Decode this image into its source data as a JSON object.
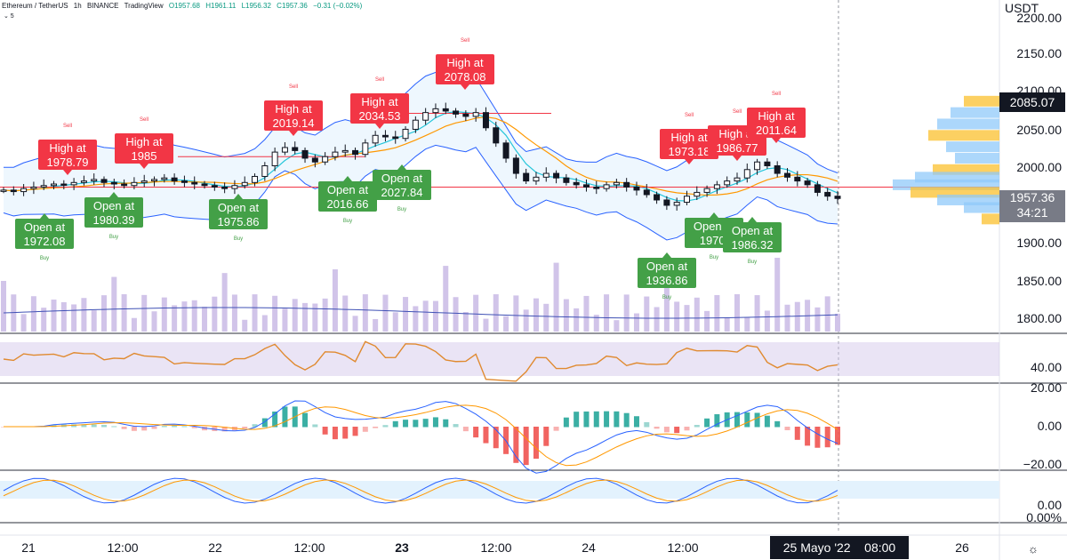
{
  "header": {
    "symbol": "Ethereum / TetherUS",
    "interval": "1h",
    "exchange": "BINANCE",
    "source": "TradingView",
    "open": "O1957.68",
    "high": "H1961.11",
    "low": "L1956.32",
    "close": "C1957.36",
    "change": "−0.31 (−0.02%)",
    "collapse": "⌄ 5"
  },
  "price_axis": {
    "unit": "USDT",
    "ticks": [
      "2200.00",
      "2150.00",
      "2100.00",
      "2050.00",
      "2000.00",
      "1950.00",
      "1900.00",
      "1850.00",
      "1800.00"
    ],
    "high_badge": "2085.07",
    "last_price": "1957.36",
    "countdown": "34:21"
  },
  "rsi_axis": {
    "tick": "40.00"
  },
  "macd_axis": {
    "ticks": [
      "20.00",
      "0.00",
      "−20.00"
    ]
  },
  "stoch_axis": {
    "ticks": [
      "0.00",
      "0.00%"
    ]
  },
  "time_axis": {
    "labels": [
      "21",
      "12:00",
      "22",
      "12:00",
      "23",
      "12:00",
      "24",
      "12:00",
      "26"
    ],
    "highlight": "25 Mayo '22",
    "highlight_time": "08:00"
  },
  "colors": {
    "bull": "#26a69a",
    "bear": "#ef5350",
    "sell_box": "#f23645",
    "buy_box": "#43a047",
    "volume": "#d1c4e9",
    "ma_volume": "#3f51b5",
    "rsi": "#e08a30",
    "macd": "#2962ff",
    "signal": "#ff9800",
    "bb": "#2962ff",
    "bb_fill": "#e3f2fd",
    "hline": "#f23645"
  },
  "chart_data": {
    "type": "candlestick",
    "symbol": "ETHUSDT",
    "interval": "1h",
    "ylim": [
      1780,
      2230
    ],
    "sell_signals": [
      {
        "label": "High at",
        "value": "1978.79",
        "tag": "Sell"
      },
      {
        "label": "High at",
        "value": "1985",
        "tag": "Sell"
      },
      {
        "label": "High at",
        "value": "2019.14",
        "tag": "Sell"
      },
      {
        "label": "High at",
        "value": "2034.53",
        "tag": "Sell"
      },
      {
        "label": "High at",
        "value": "2078.08",
        "tag": "Sell"
      },
      {
        "label": "High at",
        "value": "1973.18",
        "tag": "Sell"
      },
      {
        "label": "High at",
        "value": "1986.77",
        "tag": "Sell"
      },
      {
        "label": "High at",
        "value": "2011.64",
        "tag": "Sell"
      }
    ],
    "buy_signals": [
      {
        "label": "Open at",
        "value": "1972.08",
        "tag": "Buy"
      },
      {
        "label": "Open at",
        "value": "1980.39",
        "tag": "Buy"
      },
      {
        "label": "Open at",
        "value": "1975.86",
        "tag": "Buy"
      },
      {
        "label": "Open at",
        "value": "2016.66",
        "tag": "Buy"
      },
      {
        "label": "Open at",
        "value": "2027.84",
        "tag": "Buy"
      },
      {
        "label": "Open at",
        "value": "1936.86",
        "tag": "Buy"
      },
      {
        "label": "Open at",
        "value": "1970.",
        "tag": "Buy"
      },
      {
        "label": "Open at",
        "value": "1986.32",
        "tag": "Buy"
      }
    ],
    "close_path": [
      1968,
      1966,
      1970,
      1972,
      1974,
      1976,
      1975,
      1978,
      1980,
      1982,
      1978,
      1976,
      1974,
      1978,
      1980,
      1982,
      1984,
      1980,
      1978,
      1976,
      1974,
      1972,
      1970,
      1974,
      1978,
      1986,
      2000,
      2018,
      2024,
      2020,
      2010,
      2005,
      2012,
      2018,
      2020,
      2015,
      2030,
      2040,
      2038,
      2036,
      2048,
      2060,
      2070,
      2075,
      2072,
      2068,
      2065,
      2070,
      2050,
      2030,
      2010,
      1990,
      1980,
      1985,
      1990,
      1984,
      1978,
      1975,
      1972,
      1970,
      1975,
      1978,
      1972,
      1968,
      1962,
      1955,
      1948,
      1952,
      1960,
      1965,
      1970,
      1975,
      1980,
      1984,
      1995,
      2005,
      2000,
      1990,
      1985,
      1980,
      1975,
      1965,
      1960,
      1957
    ]
  }
}
